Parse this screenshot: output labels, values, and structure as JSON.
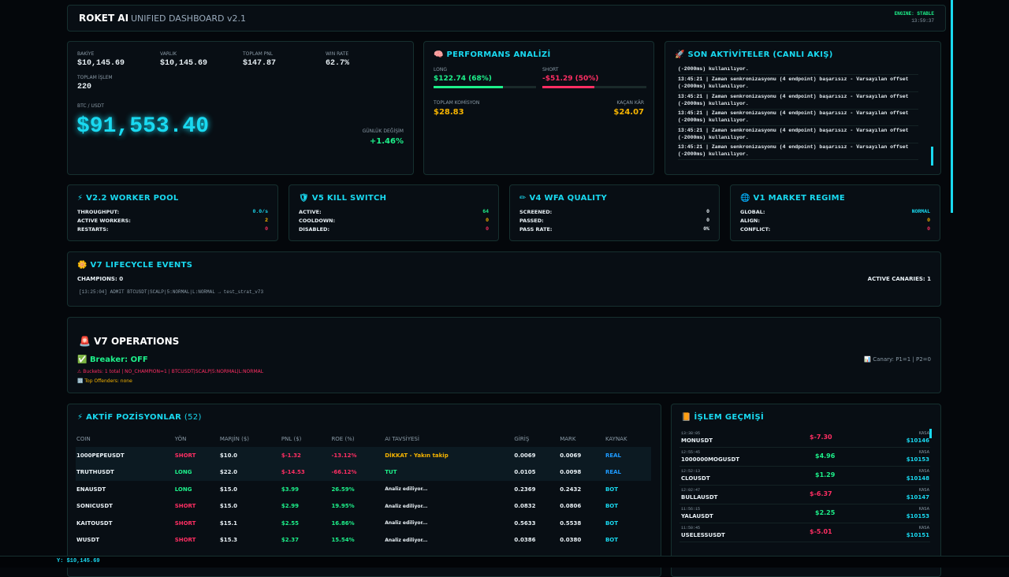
{
  "header": {
    "title": "ROKET AI",
    "subtitle": "UNIFIED DASHBOARD v2.1",
    "engine": "ENGINE: STABLE",
    "time": "13:59:37"
  },
  "stats": {
    "items": [
      {
        "label": "BAKİYE",
        "value": "$10,145.69"
      },
      {
        "label": "VARLIK",
        "value": "$10,145.69"
      },
      {
        "label": "TOPLAM PNL",
        "value": "$147.87"
      },
      {
        "label": "WIN RATE",
        "value": "62.7%"
      },
      {
        "label": "TOPLAM İŞLEM",
        "value": "220"
      }
    ],
    "btc_label": "BTC / USDT",
    "btc_price": "$91,553.40",
    "daily_label": "GÜNLÜK DEĞİŞİM",
    "daily_change": "+1.46%"
  },
  "performance": {
    "title": "PERFORMANS ANALİZİ",
    "long_label": "LONG",
    "long_value": "$122.74 (68%)",
    "short_label": "SHORT",
    "short_value": "-$51.29 (50%)",
    "commission_label": "TOPLAM KOMİSYON",
    "commission": "$28.83",
    "missed_label": "KAÇAN KÂR",
    "missed": "$24.07"
  },
  "activity": {
    "title": "SON AKTİVİTELER (CANLI AKIŞ)",
    "lines": [
      "(-2000ms) kullanılıyor.",
      "13:45:21 | Zaman senkronizasyonu (4 endpoint) başarısız - Varsayılan offset (-2000ms) kullanılıyor.",
      "13:45:21 | Zaman senkronizasyonu (4 endpoint) başarısız - Varsayılan offset (-2000ms) kullanılıyor.",
      "13:45:21 | Zaman senkronizasyonu (4 endpoint) başarısız - Varsayılan offset (-2000ms) kullanılıyor.",
      "13:45:21 | Zaman senkronizasyonu (4 endpoint) başarısız - Varsayılan offset (-2000ms) kullanılıyor.",
      "13:45:21 | Zaman senkronizasyonu (4 endpoint) başarısız - Varsayılan offset (-2000ms) kullanılıyor."
    ]
  },
  "modules": [
    {
      "title": "V2.2 WORKER POOL",
      "rows": [
        [
          "THROUGHPUT:",
          "0.0/s"
        ],
        [
          "ACTIVE WORKERS:",
          "2"
        ],
        [
          "RESTARTS:",
          "0"
        ]
      ]
    },
    {
      "title": "V5 KILL SWITCH",
      "rows": [
        [
          "ACTIVE:",
          "64"
        ],
        [
          "COOLDOWN:",
          "0"
        ],
        [
          "DISABLED:",
          "0"
        ]
      ]
    },
    {
      "title": "V4 WFA QUALITY",
      "rows": [
        [
          "SCREENED:",
          "0"
        ],
        [
          "PASSED:",
          "0"
        ],
        [
          "PASS RATE:",
          "0%"
        ]
      ]
    },
    {
      "title": "V1 MARKET REGIME",
      "rows": [
        [
          "GLOBAL:",
          "NORMAL"
        ],
        [
          "ALIGN:",
          "0"
        ],
        [
          "CONFLICT:",
          "0"
        ]
      ]
    }
  ],
  "lifecycle": {
    "title": "V7 LIFECYCLE EVENTS",
    "champions": "CHAMPIONS: 0",
    "canaries": "ACTIVE CANARIES: 1",
    "event": "[13:25:04] ADMIT BTCUSDT|SCALP|5:NORMAL|L:NORMAL → test_strat_v73"
  },
  "operations": {
    "title": "V7 OPERATIONS",
    "breaker": "Breaker: OFF",
    "buckets": "Buckets: 1 total | NO_CHAMPION=1 | BTCUSDT|SCALP|5:NORMAL|L:NORMAL",
    "offenders": "Top Offenders: none",
    "canary": "Canary: P1=1 | P2=0"
  },
  "positions": {
    "title": "AKTİF POZİSYONLAR",
    "count": "(52)",
    "columns": [
      "COIN",
      "YÖN",
      "MARJİN ($)",
      "PNL ($)",
      "ROE (%)",
      "AI TAVSİYESİ",
      "GİRİŞ",
      "MARK",
      "KAYNAK"
    ],
    "rows": [
      [
        "1000PEPEUSDT",
        "SHORT",
        "$10.0",
        "$-1.32",
        "-13.12%",
        "DİKKAT - Yakın takip",
        "0.0069",
        "0.0069",
        "REAL"
      ],
      [
        "TRUTHUSDT",
        "LONG",
        "$22.0",
        "$-14.53",
        "-66.12%",
        "TUT",
        "0.0105",
        "0.0098",
        "REAL"
      ],
      [
        "ENAUSDT",
        "LONG",
        "$15.0",
        "$3.99",
        "26.59%",
        "Analiz ediliyor...",
        "0.2369",
        "0.2432",
        "BOT"
      ],
      [
        "SONICUSDT",
        "SHORT",
        "$15.0",
        "$2.99",
        "19.95%",
        "Analiz ediliyor...",
        "0.0832",
        "0.0806",
        "BOT"
      ],
      [
        "KAITOUSDT",
        "SHORT",
        "$15.1",
        "$2.55",
        "16.86%",
        "Analiz ediliyor...",
        "0.5633",
        "0.5538",
        "BOT"
      ],
      [
        "WUSDT",
        "SHORT",
        "$15.3",
        "$2.37",
        "15.54%",
        "Analiz ediliyor...",
        "0.0386",
        "0.0380",
        "BOT"
      ]
    ]
  },
  "history": {
    "title": "İŞLEM GEÇMİŞİ",
    "items": [
      {
        "time": "13:38:05",
        "symbol": "MONUSDT",
        "pnl": "$-7.30",
        "type": "KASA",
        "balance": "$10146"
      },
      {
        "time": "12:55:45",
        "symbol": "1000000MOGUSDT",
        "pnl": "$4.96",
        "type": "KASA",
        "balance": "$10153"
      },
      {
        "time": "12:52:13",
        "symbol": "CLOUSDT",
        "pnl": "$1.29",
        "type": "KASA",
        "balance": "$10148"
      },
      {
        "time": "12:02:47",
        "symbol": "BULLAUSDT",
        "pnl": "$-6.37",
        "type": "KASA",
        "balance": "$10147"
      },
      {
        "time": "11:56:15",
        "symbol": "YALAUSDT",
        "pnl": "$2.25",
        "type": "KASA",
        "balance": "$10153"
      },
      {
        "time": "11:50:45",
        "symbol": "USELESSUSDT",
        "pnl": "$-5.01",
        "type": "KASA",
        "balance": "$10151"
      }
    ]
  },
  "footer": {
    "text": "Y: $10,145.69"
  }
}
